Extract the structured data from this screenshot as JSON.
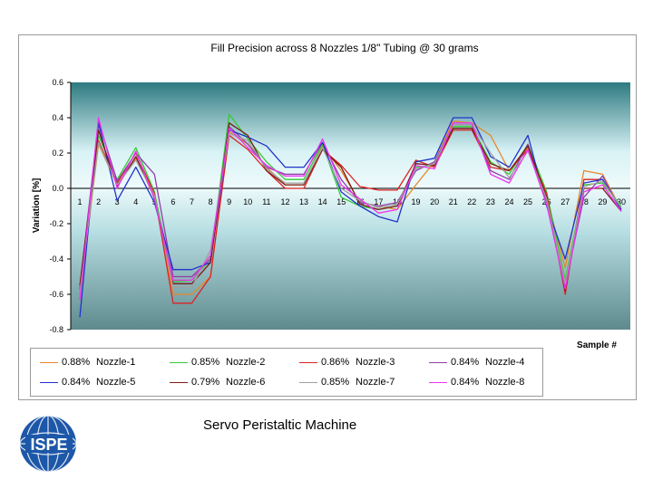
{
  "caption": "Servo Peristaltic Machine",
  "logo_text": "ISPE",
  "chart_data": {
    "type": "line",
    "title": "Fill Precision across 8 Nozzles 1/8\" Tubing @ 30 grams",
    "xlabel": "Sample #",
    "ylabel": "Variation [%]",
    "ylim": [
      -0.8,
      0.6
    ],
    "yticks": [
      -0.8,
      -0.6,
      -0.4,
      -0.2,
      0.0,
      0.2,
      0.4,
      0.6
    ],
    "ytick_labels": [
      "-0.8",
      "-0.6",
      "-0.4",
      "-0.2",
      "0.0",
      "0.2",
      "0.4",
      "0.6"
    ],
    "x": [
      1,
      2,
      3,
      4,
      5,
      6,
      7,
      8,
      9,
      10,
      11,
      12,
      13,
      14,
      15,
      16,
      17,
      18,
      19,
      20,
      21,
      22,
      23,
      24,
      25,
      26,
      27,
      28,
      29,
      30
    ],
    "grid": false,
    "legend_position": "bottom",
    "series": [
      {
        "name": "Nozzle-1",
        "value_label": "0.88%",
        "color": "#e8872a",
        "values": [
          -0.62,
          0.25,
          0.02,
          0.17,
          -0.05,
          -0.6,
          -0.6,
          -0.5,
          0.32,
          0.25,
          0.12,
          0.02,
          0.02,
          0.24,
          0.1,
          -0.08,
          -0.1,
          -0.12,
          0.02,
          0.15,
          0.38,
          0.37,
          0.3,
          0.1,
          0.23,
          -0.05,
          -0.45,
          0.1,
          0.08,
          -0.12
        ]
      },
      {
        "name": "Nozzle-2",
        "value_label": "0.85%",
        "color": "#33cc33",
        "values": [
          -0.6,
          0.3,
          0.05,
          0.23,
          -0.02,
          -0.53,
          -0.52,
          -0.4,
          0.42,
          0.28,
          0.15,
          0.05,
          0.05,
          0.25,
          -0.05,
          -0.1,
          -0.12,
          -0.1,
          0.12,
          0.13,
          0.35,
          0.35,
          0.15,
          0.08,
          0.25,
          -0.02,
          -0.52,
          0.02,
          0.03,
          -0.1
        ]
      },
      {
        "name": "Nozzle-3",
        "value_label": "0.86%",
        "color": "#dd2222",
        "values": [
          -0.58,
          0.27,
          0.03,
          0.2,
          -0.03,
          -0.65,
          -0.65,
          -0.5,
          0.3,
          0.22,
          0.1,
          0.0,
          0.0,
          0.22,
          0.13,
          0.01,
          -0.01,
          -0.01,
          0.16,
          0.12,
          0.33,
          0.33,
          0.12,
          0.1,
          0.22,
          -0.03,
          -0.6,
          0.05,
          0.05,
          -0.12
        ]
      },
      {
        "name": "Nozzle-4",
        "value_label": "0.84%",
        "color": "#8e3fa8",
        "values": [
          -0.57,
          0.38,
          0.04,
          0.2,
          0.08,
          -0.5,
          -0.5,
          -0.4,
          0.35,
          0.25,
          0.12,
          0.08,
          0.08,
          0.26,
          0.05,
          -0.08,
          -0.1,
          -0.08,
          0.1,
          0.15,
          0.36,
          0.36,
          0.1,
          0.05,
          0.25,
          -0.08,
          -0.55,
          -0.05,
          0.07,
          -0.13
        ]
      },
      {
        "name": "Nozzle-5",
        "value_label": "0.84%",
        "color": "#2233cc",
        "values": [
          -0.73,
          0.37,
          -0.07,
          0.12,
          -0.08,
          -0.46,
          -0.46,
          -0.42,
          0.33,
          0.29,
          0.24,
          0.12,
          0.12,
          0.26,
          -0.02,
          -0.1,
          -0.16,
          -0.19,
          0.15,
          0.17,
          0.4,
          0.4,
          0.18,
          0.12,
          0.3,
          -0.1,
          -0.4,
          0.03,
          0.05,
          -0.12
        ]
      },
      {
        "name": "Nozzle-6",
        "value_label": "0.79%",
        "color": "#7a1a1a",
        "values": [
          -0.55,
          0.33,
          0.01,
          0.18,
          -0.05,
          -0.54,
          -0.54,
          -0.42,
          0.37,
          0.3,
          0.1,
          0.02,
          0.02,
          0.22,
          0.12,
          -0.09,
          -0.12,
          -0.1,
          0.14,
          0.13,
          0.34,
          0.34,
          0.14,
          0.1,
          0.24,
          -0.05,
          -0.58,
          0.0,
          0.0,
          -0.13
        ]
      },
      {
        "name": "Nozzle-7",
        "value_label": "0.85%",
        "color": "#a0a0a0",
        "values": [
          -0.59,
          0.26,
          0.02,
          0.16,
          -0.04,
          -0.56,
          -0.56,
          -0.35,
          0.31,
          0.27,
          0.11,
          0.03,
          0.03,
          0.23,
          0.0,
          -0.07,
          -0.11,
          -0.09,
          0.11,
          0.14,
          0.36,
          0.36,
          0.2,
          0.06,
          0.21,
          -0.06,
          -0.54,
          0.01,
          0.04,
          -0.11
        ]
      },
      {
        "name": "Nozzle-8",
        "value_label": "0.84%",
        "color": "#ee33ee",
        "values": [
          -0.63,
          0.4,
          0.0,
          0.21,
          -0.06,
          -0.52,
          -0.52,
          -0.38,
          0.34,
          0.23,
          0.13,
          0.07,
          0.07,
          0.28,
          0.02,
          -0.06,
          -0.14,
          -0.12,
          0.13,
          0.11,
          0.37,
          0.37,
          0.08,
          0.03,
          0.22,
          -0.09,
          -0.57,
          -0.02,
          0.02,
          -0.13
        ]
      }
    ]
  }
}
